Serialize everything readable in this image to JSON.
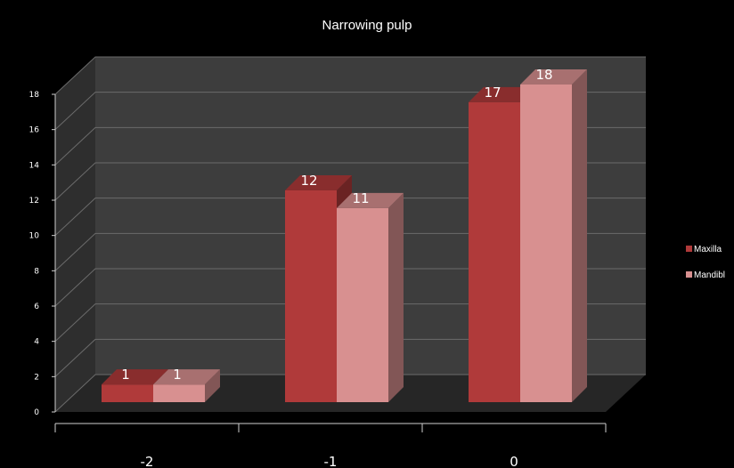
{
  "chart_data": {
    "type": "bar",
    "title": "Narrowing pulp",
    "categories": [
      "-2",
      "-1",
      "0"
    ],
    "series": [
      {
        "name": "Maxilla",
        "values": [
          1,
          12,
          17
        ],
        "color": "#b03a3a"
      },
      {
        "name": "Mandibl",
        "values": [
          1,
          11,
          18
        ],
        "color": "#d89090"
      }
    ],
    "yticks": [
      "0",
      "2",
      "4",
      "6",
      "8",
      "10",
      "12",
      "14",
      "16",
      "18"
    ],
    "ylim": [
      0,
      18
    ],
    "grid": true,
    "legend": "right",
    "colors": {
      "background": "#000000",
      "wall": "#3d3d3d",
      "floor": "#262626",
      "gridline": "#6b6b6b"
    }
  }
}
